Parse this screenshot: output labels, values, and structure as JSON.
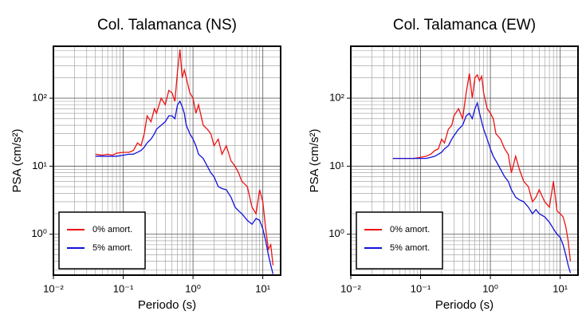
{
  "chart_data": [
    {
      "type": "line",
      "title": "Col. Talamanca (NS)",
      "x_label": "Periodo (s)",
      "y_label": "PSA (cm/s²)",
      "log_x": true,
      "log_y": true,
      "grid": true,
      "legend": "lower left",
      "xlim": [
        0.01,
        18
      ],
      "ylim": [
        0.25,
        580
      ],
      "xticks": [
        {
          "value": 0.01,
          "label": "10⁻²"
        },
        {
          "value": 0.1,
          "label": "10⁻¹"
        },
        {
          "value": 1,
          "label": "10⁰"
        },
        {
          "value": 10,
          "label": "10¹"
        }
      ],
      "yticks": [
        {
          "value": 1,
          "label": "10⁰"
        },
        {
          "value": 10,
          "label": "10¹"
        },
        {
          "value": 100,
          "label": "10²"
        }
      ],
      "x": [
        0.04,
        0.05,
        0.06,
        0.07,
        0.08,
        0.1,
        0.12,
        0.14,
        0.16,
        0.18,
        0.2,
        0.22,
        0.25,
        0.28,
        0.3,
        0.35,
        0.4,
        0.45,
        0.5,
        0.55,
        0.6,
        0.65,
        0.7,
        0.75,
        0.8,
        0.9,
        1.0,
        1.1,
        1.2,
        1.4,
        1.6,
        1.8,
        2.0,
        2.3,
        2.6,
        3.0,
        3.5,
        4.0,
        4.5,
        5,
        6,
        7,
        8,
        9,
        10,
        11,
        12,
        13,
        14
      ],
      "series": [
        {
          "name": "0% amort.",
          "color": "#ee1111",
          "values": [
            15,
            14.5,
            15,
            14.5,
            15.5,
            16,
            16,
            17,
            22,
            20,
            30,
            55,
            45,
            70,
            60,
            100,
            80,
            130,
            120,
            90,
            250,
            520,
            200,
            260,
            200,
            120,
            100,
            60,
            80,
            40,
            35,
            30,
            20,
            25,
            15,
            20,
            12,
            10,
            8,
            6,
            5,
            2.5,
            2,
            4.5,
            3,
            1.2,
            0.6,
            0.7,
            0.35
          ]
        },
        {
          "name": "5% amort.",
          "color": "#1111dd",
          "values": [
            14,
            14,
            14,
            14,
            14,
            14.5,
            15,
            15,
            16,
            17,
            19,
            22,
            25,
            30,
            35,
            40,
            45,
            55,
            55,
            50,
            80,
            90,
            75,
            60,
            40,
            30,
            25,
            20,
            15,
            13,
            10,
            8,
            7,
            5,
            4.7,
            4.5,
            3.5,
            2.5,
            2.2,
            2,
            1.6,
            1.4,
            1.7,
            1.6,
            1.2,
            0.8,
            0.5,
            0.35,
            0.26
          ]
        }
      ]
    },
    {
      "type": "line",
      "title": "Col. Talamanca (EW)",
      "x_label": "Periodo (s)",
      "y_label": "PSA (cm/s²)",
      "log_x": true,
      "log_y": true,
      "grid": true,
      "legend": "lower left",
      "xlim": [
        0.01,
        18
      ],
      "ylim": [
        0.25,
        580
      ],
      "xticks": [
        {
          "value": 0.01,
          "label": "10⁻²"
        },
        {
          "value": 0.1,
          "label": "10⁻¹"
        },
        {
          "value": 1,
          "label": "10⁰"
        },
        {
          "value": 10,
          "label": "10¹"
        }
      ],
      "yticks": [
        {
          "value": 1,
          "label": "10⁰"
        },
        {
          "value": 10,
          "label": "10¹"
        },
        {
          "value": 100,
          "label": "10²"
        }
      ],
      "x": [
        0.04,
        0.05,
        0.06,
        0.07,
        0.08,
        0.1,
        0.12,
        0.14,
        0.16,
        0.18,
        0.2,
        0.22,
        0.25,
        0.28,
        0.3,
        0.35,
        0.4,
        0.45,
        0.5,
        0.55,
        0.6,
        0.65,
        0.7,
        0.75,
        0.8,
        0.9,
        1.0,
        1.1,
        1.2,
        1.4,
        1.6,
        1.8,
        2.0,
        2.3,
        2.6,
        3.0,
        3.5,
        4.0,
        4.5,
        5,
        6,
        7,
        8,
        9,
        10,
        11,
        12,
        13,
        14
      ],
      "series": [
        {
          "name": "0% amort.",
          "color": "#ee1111",
          "values": [
            13,
            13,
            13,
            13,
            13,
            13.5,
            14,
            15,
            17,
            18,
            25,
            22,
            35,
            40,
            55,
            70,
            50,
            120,
            230,
            100,
            200,
            220,
            180,
            210,
            120,
            70,
            60,
            50,
            30,
            25,
            18,
            15,
            8,
            14,
            9,
            6,
            5,
            3,
            3.5,
            4.5,
            3,
            2.5,
            6,
            2.2,
            2,
            1.8,
            1.3,
            0.8,
            0.4
          ]
        },
        {
          "name": "5% amort.",
          "color": "#1111dd",
          "values": [
            13,
            13,
            13,
            13,
            13,
            13,
            13,
            13.5,
            14,
            15,
            16,
            18,
            20,
            25,
            28,
            35,
            40,
            55,
            60,
            50,
            70,
            85,
            60,
            45,
            35,
            25,
            18,
            14,
            12,
            9,
            7,
            6,
            4.5,
            3.5,
            3.2,
            3,
            2.5,
            2,
            2.3,
            2,
            1.8,
            1.5,
            1.2,
            1,
            0.9,
            0.7,
            0.5,
            0.35,
            0.27
          ]
        }
      ]
    }
  ]
}
